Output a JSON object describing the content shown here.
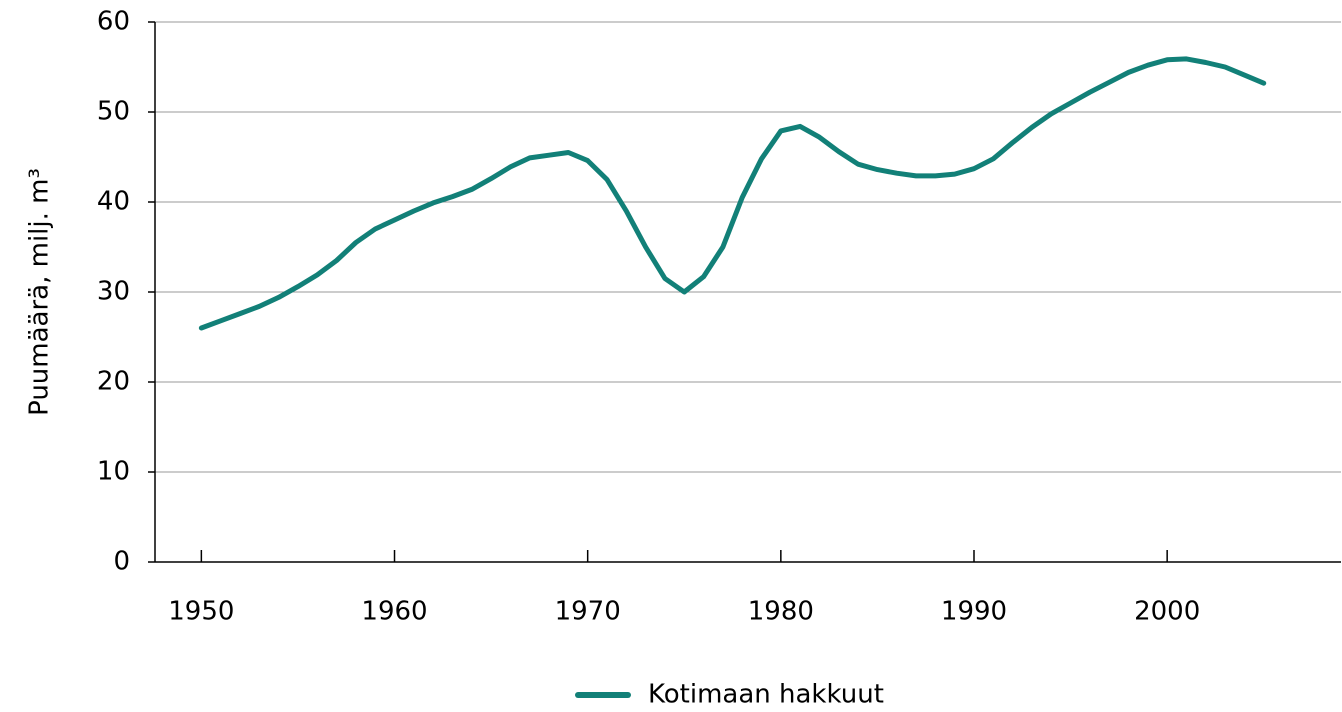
{
  "chart_data": {
    "type": "line",
    "y_label": "Puumäärä, milj. m³",
    "x": [
      1950,
      1951,
      1952,
      1953,
      1954,
      1955,
      1956,
      1957,
      1958,
      1959,
      1960,
      1961,
      1962,
      1963,
      1964,
      1965,
      1966,
      1967,
      1968,
      1969,
      1970,
      1971,
      1972,
      1973,
      1974,
      1975,
      1976,
      1977,
      1978,
      1979,
      1980,
      1981,
      1982,
      1983,
      1984,
      1985,
      1986,
      1987,
      1988,
      1989,
      1990,
      1991,
      1992,
      1993,
      1994,
      1995,
      1996,
      1997,
      1998,
      1999,
      2000,
      2001,
      2002,
      2003,
      2004,
      2005
    ],
    "series": [
      {
        "name": "Kotimaan hakkuut",
        "color": "#128078",
        "values": [
          26.0,
          26.8,
          27.6,
          28.4,
          29.4,
          30.6,
          31.9,
          33.5,
          35.5,
          37.0,
          38.0,
          39.0,
          39.9,
          40.6,
          41.4,
          42.6,
          43.9,
          44.9,
          45.2,
          45.5,
          44.6,
          42.5,
          39.0,
          35.0,
          31.5,
          30.0,
          31.7,
          35.0,
          40.5,
          44.8,
          47.9,
          48.4,
          47.2,
          45.6,
          44.2,
          43.6,
          43.2,
          42.9,
          42.9,
          43.1,
          43.7,
          44.8,
          46.6,
          48.3,
          49.8,
          51.0,
          52.2,
          53.3,
          54.4,
          55.2,
          55.8,
          55.9,
          55.5,
          55.0,
          54.1,
          53.2
        ]
      }
    ],
    "xlim": [
      1947.6,
      2009.0
    ],
    "xticks": [
      1950,
      1960,
      1970,
      1980,
      1990,
      2000
    ],
    "ylim": [
      0,
      60
    ],
    "yticks": [
      0,
      10,
      20,
      30,
      40,
      50,
      60
    ],
    "grid": true,
    "legend": "bottom"
  }
}
